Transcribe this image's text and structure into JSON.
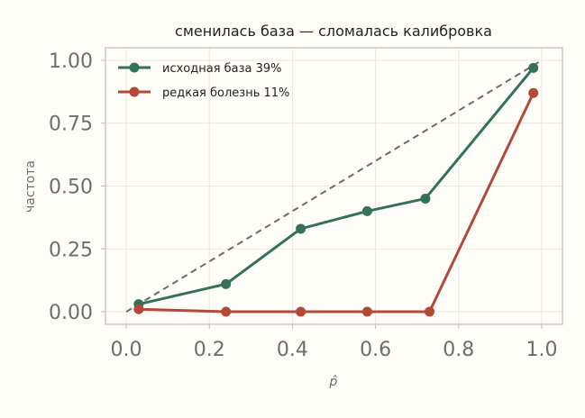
{
  "chart_data": {
    "type": "line",
    "title": "сменилась база — сломалась калибровка",
    "xlabel": "p̂",
    "ylabel": "частота",
    "xlim": [
      -0.05,
      1.05
    ],
    "ylim": [
      -0.05,
      1.05
    ],
    "x_ticks": [
      0.0,
      0.2,
      0.4,
      0.6,
      0.8,
      1.0
    ],
    "x_tick_labels": [
      "0.0",
      "0.2",
      "0.4",
      "0.6",
      "0.8",
      "1.0"
    ],
    "y_ticks": [
      0.0,
      0.25,
      0.5,
      0.75,
      1.0
    ],
    "y_tick_labels": [
      "0.00",
      "0.25",
      "0.50",
      "0.75",
      "1.00"
    ],
    "grid": true,
    "legend_position": "top-left",
    "reference_line": {
      "x": [
        0.0,
        1.0
      ],
      "y": [
        0.0,
        1.0
      ],
      "style": "dashed",
      "color": "#6b6b6b"
    },
    "series": [
      {
        "name": "исходная база 39%",
        "color": "#35715a",
        "x": [
          0.03,
          0.24,
          0.42,
          0.58,
          0.72,
          0.98
        ],
        "y": [
          0.03,
          0.11,
          0.33,
          0.4,
          0.45,
          0.97
        ]
      },
      {
        "name": "редкая болезнь 11%",
        "color": "#b24a3c",
        "x": [
          0.03,
          0.24,
          0.42,
          0.58,
          0.73,
          0.98
        ],
        "y": [
          0.01,
          0.0,
          0.0,
          0.0,
          0.0,
          0.87
        ]
      }
    ]
  }
}
